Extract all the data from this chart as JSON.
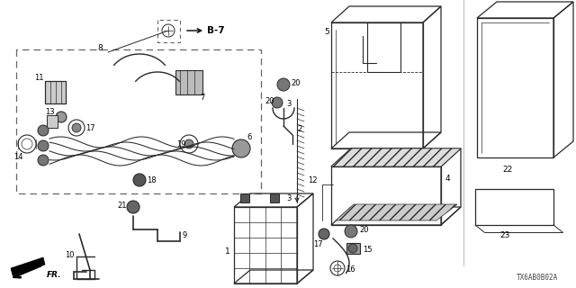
{
  "bg_color": "#ffffff",
  "line_color": "#2a2a2a",
  "text_color": "#000000",
  "diagram_code": "TX6AB0B02A",
  "b7_label": "B-7",
  "fr_label": "FR."
}
